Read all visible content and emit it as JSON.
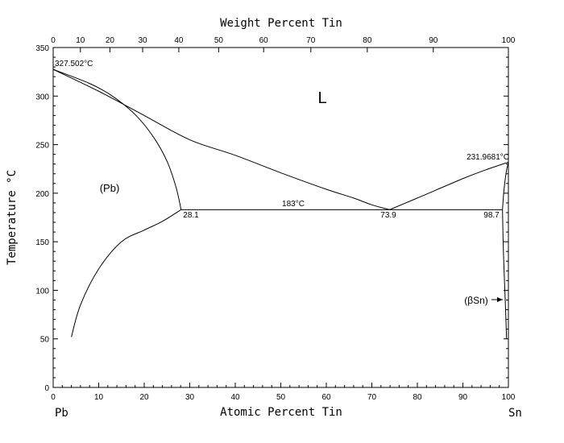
{
  "chart_data": {
    "type": "line",
    "title": "",
    "xlabel": "Atomic Percent Tin",
    "x2label": "Weight Percent Tin",
    "ylabel": "Temperature °C",
    "xlim": [
      0,
      100
    ],
    "ylim": [
      0,
      350
    ],
    "x_ticks": [
      0,
      10,
      20,
      30,
      40,
      50,
      60,
      70,
      80,
      90,
      100
    ],
    "y_ticks": [
      0,
      50,
      100,
      150,
      200,
      250,
      300,
      350
    ],
    "x2_ticks": [
      0,
      10,
      20,
      30,
      40,
      50,
      60,
      70,
      80,
      90,
      100
    ],
    "x2_tick_positions_at": [
      0,
      5.98,
      12.46,
      19.65,
      27.6,
      36.35,
      46.23,
      56.6,
      69.0,
      83.5,
      100
    ],
    "left_component": "Pb",
    "right_component": "Sn",
    "grid": false,
    "series": [
      {
        "key": "liquidus_pb",
        "points": [
          [
            0,
            327.502
          ],
          [
            10,
            305
          ],
          [
            20,
            280
          ],
          [
            30,
            255
          ],
          [
            40,
            239
          ],
          [
            50,
            221
          ],
          [
            60,
            204
          ],
          [
            66,
            195
          ],
          [
            70,
            188
          ],
          [
            73.9,
            183
          ]
        ]
      },
      {
        "key": "liquidus_sn",
        "points": [
          [
            73.9,
            183
          ],
          [
            80,
            195
          ],
          [
            90,
            215
          ],
          [
            95,
            224
          ],
          [
            100,
            231.9681
          ]
        ]
      },
      {
        "key": "solidus_pb",
        "points": [
          [
            0,
            327.502
          ],
          [
            8,
            313
          ],
          [
            13,
            300
          ],
          [
            18,
            281
          ],
          [
            22,
            258
          ],
          [
            25,
            233
          ],
          [
            27,
            206
          ],
          [
            28.1,
            183
          ]
        ]
      },
      {
        "key": "solvus_pb",
        "points": [
          [
            28.1,
            183
          ],
          [
            24,
            171
          ],
          [
            20,
            162
          ],
          [
            15,
            150
          ],
          [
            10,
            122
          ],
          [
            6,
            85
          ],
          [
            4,
            52
          ]
        ]
      },
      {
        "key": "solidus_sn",
        "points": [
          [
            98.7,
            183
          ],
          [
            99.0,
            202
          ],
          [
            99.5,
            221
          ],
          [
            100,
            231.9681
          ]
        ]
      },
      {
        "key": "solvus_sn",
        "points": [
          [
            98.7,
            183
          ],
          [
            98.9,
            140
          ],
          [
            99.3,
            90
          ],
          [
            99.6,
            50
          ]
        ]
      },
      {
        "key": "eutectic_line",
        "points": [
          [
            28.1,
            183
          ],
          [
            98.7,
            183
          ]
        ]
      }
    ],
    "annotations": {
      "pb_melting": {
        "text": "327.502°C",
        "at": [
          0,
          327.502
        ]
      },
      "sn_melting": {
        "text": "231.9681°C",
        "at": [
          100,
          231.9681
        ]
      },
      "eutectic_temp": {
        "text": "183°C",
        "at": [
          50,
          183
        ]
      },
      "eutectic_left": {
        "text": "28.1",
        "at": [
          28.1,
          183
        ]
      },
      "eutectic_mid": {
        "text": "73.9",
        "at": [
          73.9,
          183
        ]
      },
      "eutectic_right": {
        "text": "98.7",
        "at": [
          98.7,
          183
        ]
      },
      "liquid_region": {
        "text": "L",
        "at": [
          59,
          300
        ]
      },
      "pb_region": {
        "text": "(Pb)",
        "at": [
          12.5,
          205
        ]
      },
      "sn_region": {
        "text": "(βSn)",
        "at": [
          92,
          90
        ]
      }
    }
  }
}
